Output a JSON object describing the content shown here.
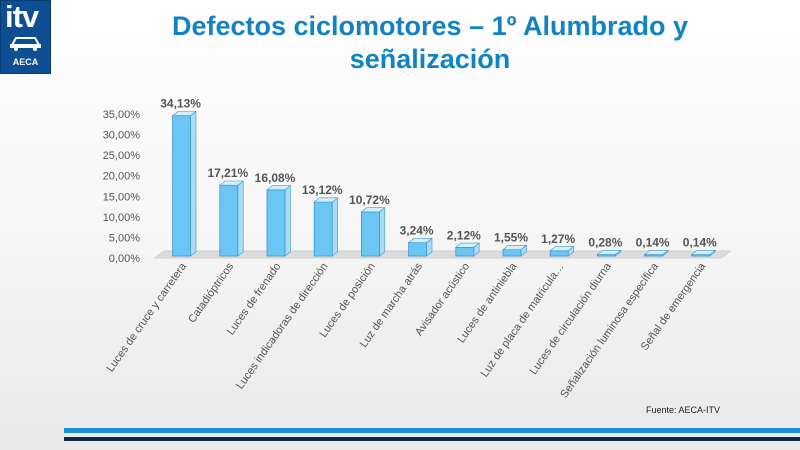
{
  "logo": {
    "text": "itv",
    "subtext": "AECA",
    "icon": "car-icon"
  },
  "title": {
    "line1": "Defectos ciclomotores –  1º Alumbrado y",
    "line2": "señalización"
  },
  "source": "Fuente: AECA-ITV",
  "colors": {
    "title": "#1183c3",
    "bar_front": "#6cc6f4",
    "bar_side": "#a9dcf5",
    "bar_top": "#d4eefb",
    "bar_stroke": "#3a97cf"
  },
  "chart_data": {
    "type": "bar",
    "categories": [
      "Luces de cruce y carretera",
      "Catadióptricos",
      "Luces de frenado",
      "Luces indicadoras de dirección",
      "Luces de posición",
      "Luz de marcha atrás",
      "Avisador acústico",
      "Luces de antiniebla",
      "Luz de placa de matricula…",
      "Luces de circulación diurna",
      "Señalización luminosa específica",
      "Señal de emergencia"
    ],
    "values": [
      34.13,
      17.21,
      16.08,
      13.12,
      10.72,
      3.24,
      2.12,
      1.55,
      1.27,
      0.28,
      0.14,
      0.14
    ],
    "data_labels": [
      "34,13%",
      "17,21%",
      "16,08%",
      "13,12%",
      "10,72%",
      "3,24%",
      "2,12%",
      "1,55%",
      "1,27%",
      "0,28%",
      "0,14%",
      "0,14%"
    ],
    "y_ticks": [
      0,
      5,
      10,
      15,
      20,
      25,
      30,
      35
    ],
    "y_tick_labels": [
      "0,00%",
      "5,00%",
      "10,00%",
      "15,00%",
      "20,00%",
      "25,00%",
      "30,00%",
      "35,00%"
    ],
    "ylim": [
      0,
      35
    ],
    "style": "3d-columns",
    "grid": false
  }
}
